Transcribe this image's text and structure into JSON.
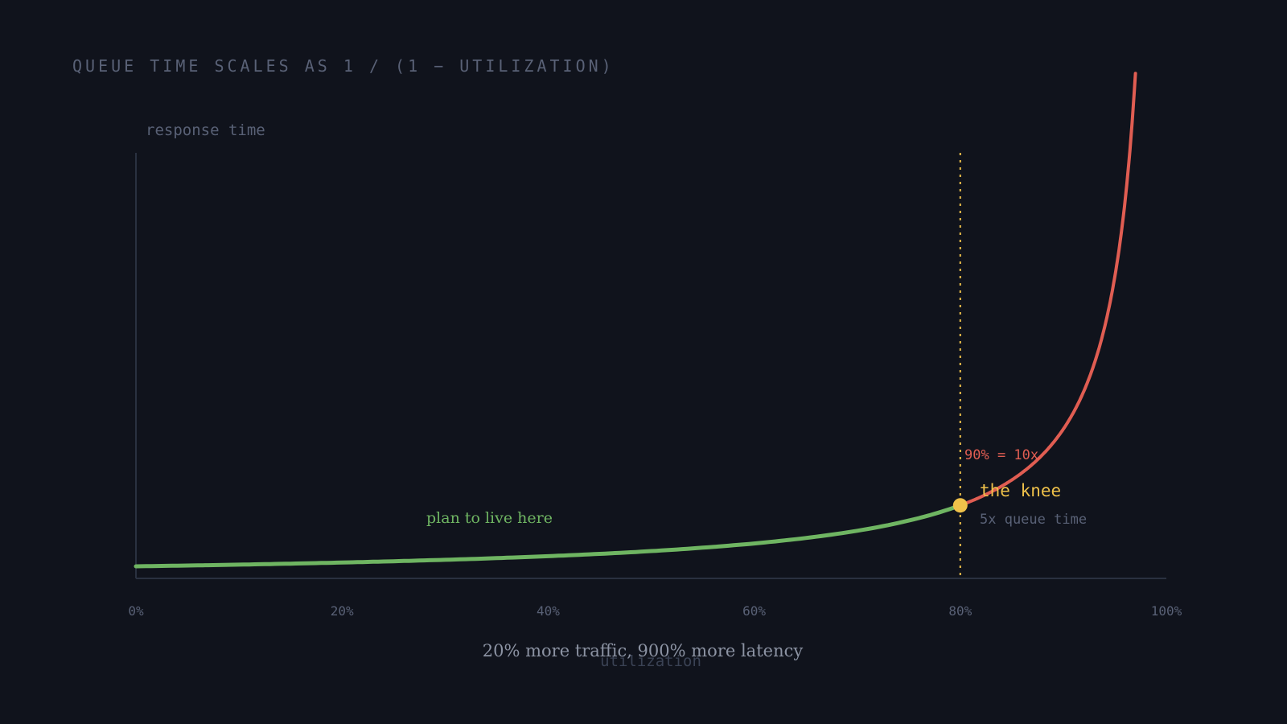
{
  "title": "QUEUE TIME SCALES AS 1 / (1 − UTILIZATION)",
  "colors": {
    "background": "#10131c",
    "axis": "#2a3140",
    "muted_text": "#596176",
    "safe_curve": "#6fb562",
    "danger_curve": "#e05d52",
    "knee": "#efc14a",
    "caption": "#8c93a3"
  },
  "chart_data": {
    "type": "line",
    "function": "1 / (1 - utilization)",
    "xlabel": "utilization",
    "ylabel": "response time",
    "x_ticks": [
      "0%",
      "20%",
      "40%",
      "60%",
      "80%",
      "100%"
    ],
    "xlim": [
      0,
      1
    ],
    "grid": false,
    "series": [
      {
        "x": [
          0,
          0.1,
          0.2,
          0.3,
          0.4,
          0.5,
          0.6,
          0.7,
          0.8
        ],
        "values": [
          1,
          1.11,
          1.25,
          1.43,
          1.67,
          2,
          2.5,
          3.33,
          5
        ]
      },
      {
        "x": [
          0.8,
          0.85,
          0.9,
          0.93,
          0.95,
          0.97
        ],
        "values": [
          5,
          6.67,
          10,
          14.3,
          20,
          33.3
        ]
      }
    ],
    "knee": {
      "x": 0.8,
      "y": 5,
      "label": "the knee",
      "sublabel": "5x queue time"
    },
    "annotations": {
      "marker_90": "90% = 10x",
      "safe_zone": "plan to live here",
      "caption": "20% more traffic, 900% more latency"
    }
  }
}
